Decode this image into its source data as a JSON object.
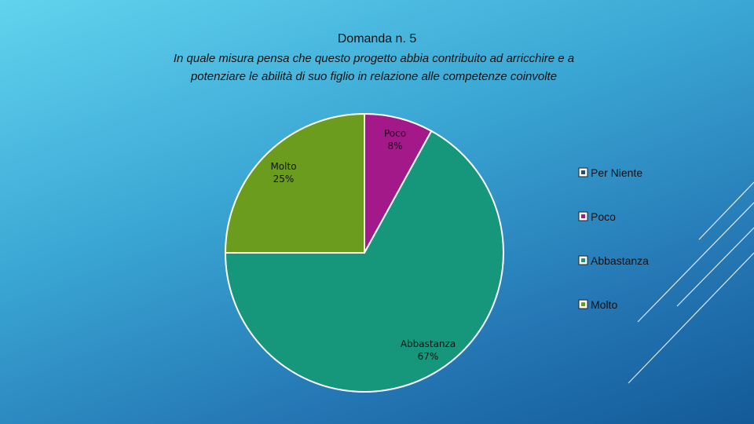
{
  "chart_data": {
    "type": "pie",
    "title": "Domanda n. 5",
    "subtitle_lines": [
      "In quale misura pensa che questo progetto abbia contribuito ad arricchire e a",
      "potenziare le abilità di suo figlio in relazione alle competenze coinvolte"
    ],
    "categories": [
      "Per Niente",
      "Poco",
      "Abbastanza",
      "Molto"
    ],
    "values": [
      0,
      8,
      67,
      25
    ],
    "data_labels": [
      {
        "category": "Poco",
        "value": "8%"
      },
      {
        "category": "Molto",
        "value": "25%"
      },
      {
        "category": "Abbastanza",
        "value": "67%"
      }
    ],
    "colors": [
      "#1f4e79",
      "#a4198a",
      "#16967a",
      "#6b9c1e"
    ],
    "legend_position": "right"
  }
}
